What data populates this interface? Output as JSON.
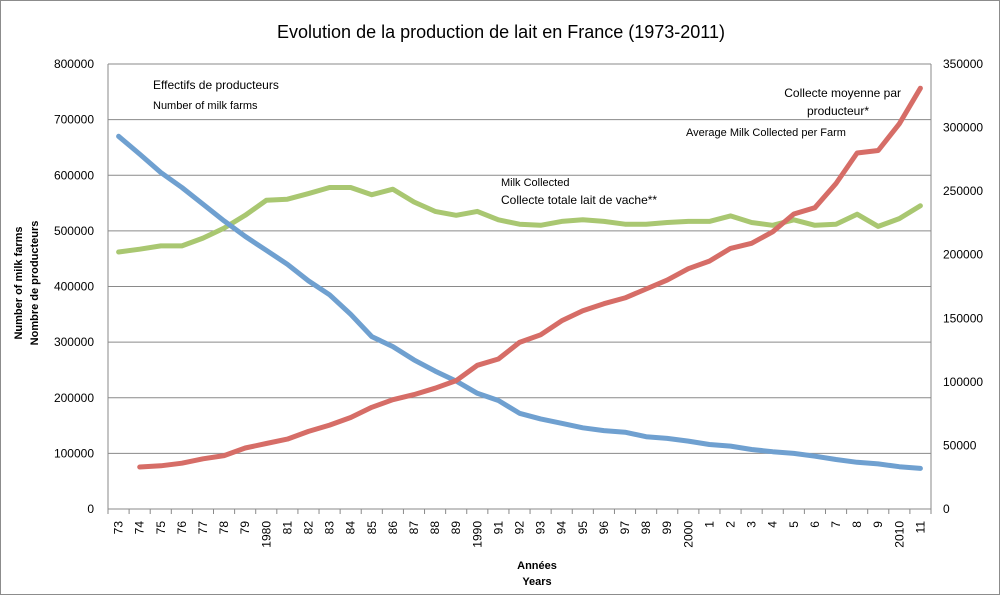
{
  "chart_data": {
    "type": "line",
    "title": "Evolution de la production de lait en France (1973-2011)",
    "xlabel": [
      "Années",
      "Years"
    ],
    "ylabel_left": [
      "Number of milk farms",
      "Nombre de producteurs"
    ],
    "ylim_left": [
      0,
      800000
    ],
    "yticks_left": [
      "0",
      "100000",
      "200000",
      "300000",
      "400000",
      "500000",
      "600000",
      "700000",
      "800000"
    ],
    "ylim_right": [
      0,
      350000
    ],
    "yticks_right": [
      "0",
      "50000",
      "100000",
      "150000",
      "200000",
      "250000",
      "300000",
      "350000"
    ],
    "grid": true,
    "categories": [
      "73",
      "74",
      "75",
      "76",
      "77",
      "78",
      "79",
      "1980",
      "81",
      "82",
      "83",
      "84",
      "85",
      "86",
      "87",
      "88",
      "89",
      "1990",
      "91",
      "92",
      "93",
      "94",
      "95",
      "96",
      "97",
      "98",
      "99",
      "2000",
      "1",
      "2",
      "3",
      "4",
      "5",
      "6",
      "7",
      "8",
      "9",
      "2010",
      "11"
    ],
    "series": [
      {
        "name": "Effectifs de producteurs",
        "axis": "left",
        "color": "#6fa0d0",
        "values": [
          670000,
          638000,
          605000,
          578000,
          548000,
          518000,
          490000,
          465000,
          440000,
          410000,
          385000,
          350000,
          310000,
          292000,
          268000,
          248000,
          230000,
          208000,
          195000,
          172000,
          162000,
          154000,
          146000,
          141000,
          138000,
          130000,
          127000,
          122000,
          116000,
          113000,
          107000,
          103000,
          100000,
          95000,
          89000,
          84000,
          81000,
          76000,
          73000
        ]
      },
      {
        "name": "Collecte totale lait de vache**",
        "axis": "left",
        "color": "#a9c771",
        "values": [
          462000,
          467000,
          473000,
          473000,
          487000,
          505000,
          528000,
          555000,
          557000,
          567000,
          578000,
          578000,
          565000,
          575000,
          552000,
          535000,
          528000,
          535000,
          520000,
          512000,
          510000,
          517000,
          520000,
          517000,
          512000,
          512000,
          515000,
          517000,
          517000,
          527000,
          515000,
          510000,
          520000,
          510000,
          512000,
          530000,
          508000,
          522000,
          545000
        ]
      },
      {
        "name": "Collecte moyenne par producteur*",
        "axis": "right",
        "color": "#d66d67",
        "values": [
          null,
          33000,
          34000,
          36000,
          39500,
          42000,
          48000,
          51500,
          55000,
          61000,
          66000,
          72000,
          80000,
          86000,
          90000,
          95000,
          101000,
          113000,
          118000,
          131000,
          137000,
          148000,
          156000,
          161500,
          166000,
          173000,
          180000,
          189000,
          195000,
          205000,
          209000,
          218000,
          232000,
          237000,
          256000,
          280000,
          282000,
          303000,
          331000
        ]
      }
    ],
    "annotations": [
      {
        "text": "Effectifs de producteurs"
      },
      {
        "text": "Number of milk farms"
      },
      {
        "text": "Milk Collected"
      },
      {
        "text": "Collecte totale lait de vache**"
      },
      {
        "text": "Collecte moyenne par"
      },
      {
        "text": "producteur*"
      },
      {
        "text": "Average Milk Collected per Farm"
      }
    ]
  }
}
